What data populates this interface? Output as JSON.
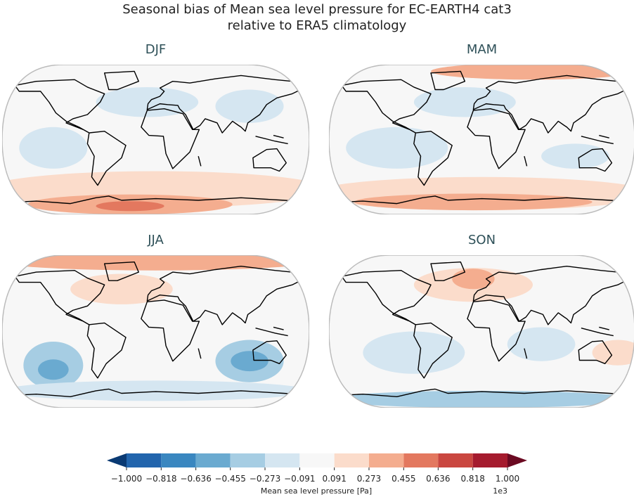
{
  "title": [
    "Seasonal bias of Mean sea level pressure for EC-EARTH4 cat3",
    "relative to ERA5 climatology"
  ],
  "panels": [
    {
      "title": "DJF"
    },
    {
      "title": "MAM"
    },
    {
      "title": "JJA"
    },
    {
      "title": "SON"
    }
  ],
  "colorbar": {
    "label": "Mean sea level pressure [Pa]",
    "offset_label": "1e3",
    "ticks": [
      {
        "value": -1.0,
        "label": "−1.000"
      },
      {
        "value": -0.818,
        "label": "−0.818"
      },
      {
        "value": -0.636,
        "label": "−0.636"
      },
      {
        "value": -0.455,
        "label": "−0.455"
      },
      {
        "value": -0.273,
        "label": "−0.273"
      },
      {
        "value": -0.091,
        "label": "−0.091"
      },
      {
        "value": 0.091,
        "label": "0.091"
      },
      {
        "value": 0.273,
        "label": "0.273"
      },
      {
        "value": 0.455,
        "label": "0.455"
      },
      {
        "value": 0.636,
        "label": "0.636"
      },
      {
        "value": 0.818,
        "label": "0.818"
      },
      {
        "value": 1.0,
        "label": "1.000"
      }
    ],
    "colors": [
      "#2265ad",
      "#3a87c0",
      "#6aaad0",
      "#a6cde3",
      "#d5e6f1",
      "#f7f7f7",
      "#fbdccb",
      "#f4ad8f",
      "#e3785f",
      "#ca4740",
      "#a51b2e"
    ],
    "extend_colors": [
      "#0a3a73",
      "#6b0a22"
    ]
  }
}
